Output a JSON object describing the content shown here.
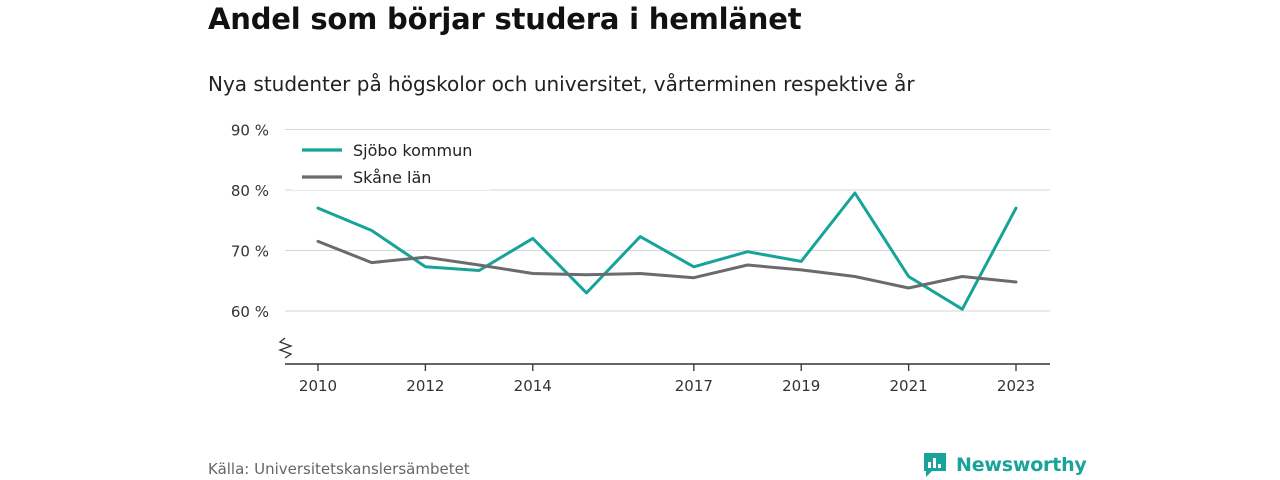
{
  "header": {
    "title": "Andel som börjar studera i hemlänet",
    "subtitle": "Nya studenter på högskolor och universitet, vårterminen respektive år"
  },
  "footer": {
    "source": "Källa: Universitetskanslersämbetet",
    "brand": "Newsworthy",
    "brand_icon": "newsworthy-logo-icon"
  },
  "chart_data": {
    "type": "line",
    "x": [
      2010,
      2011,
      2012,
      2013,
      2014,
      2015,
      2016,
      2017,
      2018,
      2019,
      2020,
      2021,
      2022,
      2023
    ],
    "x_ticks": [
      "2010",
      "2012",
      "2014",
      "2017",
      "2019",
      "2021",
      "2023"
    ],
    "y_ticks": [
      "60 %",
      "70 %",
      "80 %",
      "90 %"
    ],
    "y_tick_values": [
      60,
      70,
      80,
      90
    ],
    "ylim": [
      51,
      90
    ],
    "axis_break": true,
    "grid": true,
    "legend_position": "top-left",
    "series": [
      {
        "name": "Sjöbo kommun",
        "color": "#15a39a",
        "values": [
          77.0,
          73.3,
          67.3,
          66.7,
          72.0,
          63.0,
          72.3,
          67.3,
          69.8,
          68.2,
          79.5,
          65.7,
          60.3,
          77.0
        ]
      },
      {
        "name": "Skåne län",
        "color": "#6b6b6e",
        "values": [
          71.5,
          68.0,
          68.9,
          67.6,
          66.2,
          66.0,
          66.2,
          65.5,
          67.6,
          66.8,
          65.7,
          63.8,
          65.7,
          64.8
        ]
      }
    ]
  }
}
